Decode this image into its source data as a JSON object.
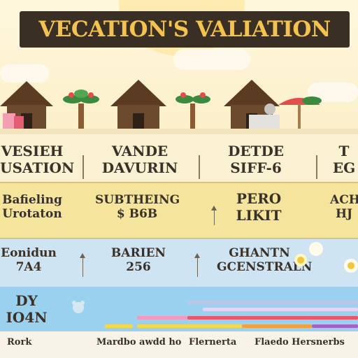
{
  "header": {
    "title": "VECATION'S VALIATION"
  },
  "icons": [
    "house-icon",
    "palm-tree-icon",
    "luggage-icon",
    "beach-umbrella-icon"
  ],
  "row1": [
    "VESIEH\nUSATION",
    "VANDE\nDAVURIN",
    "DETDE\nSIFF-6",
    "T\nEG"
  ],
  "row2": [
    "Bafieling\nUrotaton",
    "SUBTHEING\n$ B6B",
    "PERO\nLIKIT",
    "ACH\nHJ"
  ],
  "row3": [
    "Eonidun\n7A4",
    "BARIEN\n256",
    "GHANTN\nGCENSTRALN"
  ],
  "row4": [
    "DY\nIO4N"
  ],
  "footer": [
    "Rork",
    "Mardbo awdd ho",
    "Flernerta",
    "Flaedo Hersnerbs"
  ],
  "colors": {
    "title_bg": "#3a2f25",
    "title_text": "#f4c24f"
  }
}
